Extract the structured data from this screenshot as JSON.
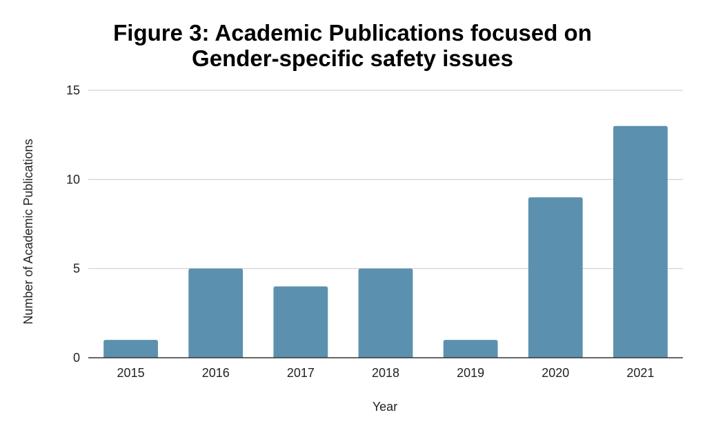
{
  "chart_data": {
    "type": "bar",
    "title_lines": [
      "Figure 3: Academic Publications focused on",
      "Gender-specific safety issues"
    ],
    "xlabel": "Year",
    "ylabel": "Number of Academic Publications",
    "categories": [
      "2015",
      "2016",
      "2017",
      "2018",
      "2019",
      "2020",
      "2021"
    ],
    "values": [
      1,
      5,
      4,
      5,
      1,
      9,
      13
    ],
    "ylim": [
      0,
      15
    ],
    "yticks": [
      0,
      5,
      10,
      15
    ],
    "grid": true,
    "legend": "none",
    "bar_color": "#5b91ae",
    "gridline_color": "#c8c8c8",
    "axis_color": "#333333"
  }
}
